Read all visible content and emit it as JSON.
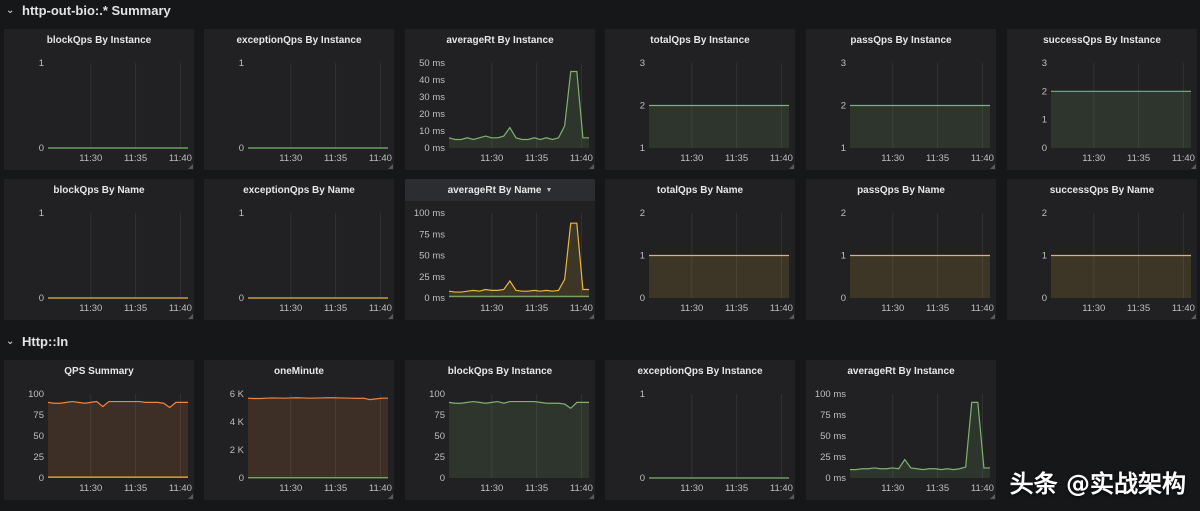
{
  "rows": [
    {
      "title": "http-out-bio:.* Summary"
    },
    {
      "title": "Http::In"
    }
  ],
  "colors": {
    "green": "#7eb26d",
    "yellow": "#eab839",
    "orange": "#ef843c",
    "grid": "#333336",
    "tick": "#bfbfbf"
  },
  "panels": [
    {
      "title": "blockQps By Instance",
      "yticks": [
        "0",
        "1"
      ],
      "ymax": 1,
      "xticks": [
        "11:30",
        "11:35",
        "11:40"
      ],
      "series": [
        {
          "color": "green",
          "fill": false,
          "values": [
            0,
            0
          ]
        }
      ]
    },
    {
      "title": "exceptionQps By Instance",
      "yticks": [
        "0",
        "1"
      ],
      "ymax": 1,
      "xticks": [
        "11:30",
        "11:35",
        "11:40"
      ],
      "series": [
        {
          "color": "green",
          "fill": false,
          "values": [
            0,
            0
          ]
        }
      ]
    },
    {
      "title": "averageRt By Instance",
      "yticks": [
        "0 ms",
        "10 ms",
        "20 ms",
        "30 ms",
        "40 ms",
        "50 ms"
      ],
      "ymax": 50,
      "xticks": [
        "11:30",
        "11:35",
        "11:40"
      ],
      "series": [
        {
          "color": "green",
          "fill": true,
          "values": [
            6,
            5,
            5,
            6,
            5,
            6,
            7,
            6,
            6,
            7,
            12,
            6,
            5,
            5,
            6,
            5,
            6,
            5,
            6,
            13,
            45,
            45,
            6,
            6
          ]
        }
      ]
    },
    {
      "title": "totalQps By Instance",
      "yticks": [
        "1",
        "2",
        "3"
      ],
      "ymin": 1,
      "ymax": 3,
      "xticks": [
        "11:30",
        "11:35",
        "11:40"
      ],
      "series": [
        {
          "color": "green",
          "fill": true,
          "values": [
            2,
            2
          ]
        }
      ]
    },
    {
      "title": "passQps By Instance",
      "yticks": [
        "1",
        "2",
        "3"
      ],
      "ymin": 1,
      "ymax": 3,
      "xticks": [
        "11:30",
        "11:35",
        "11:40"
      ],
      "series": [
        {
          "color": "green",
          "fill": true,
          "values": [
            2,
            2
          ]
        }
      ]
    },
    {
      "title": "successQps By Instance",
      "yticks": [
        "0",
        "1",
        "2",
        "3"
      ],
      "ymax": 3,
      "xticks": [
        "11:30",
        "11:35",
        "11:40"
      ],
      "series": [
        {
          "color": "green",
          "fill": true,
          "values": [
            2,
            2
          ]
        }
      ]
    },
    {
      "title": "blockQps By Name",
      "yticks": [
        "0",
        "1"
      ],
      "ymax": 1,
      "xticks": [
        "11:30",
        "11:35",
        "11:40"
      ],
      "series": [
        {
          "color": "yellow",
          "fill": false,
          "values": [
            0,
            0
          ]
        }
      ]
    },
    {
      "title": "exceptionQps By Name",
      "yticks": [
        "0",
        "1"
      ],
      "ymax": 1,
      "xticks": [
        "11:30",
        "11:35",
        "11:40"
      ],
      "series": [
        {
          "color": "yellow",
          "fill": false,
          "values": [
            0,
            0
          ]
        }
      ]
    },
    {
      "title": "averageRt By Name",
      "active": true,
      "caret": "▼",
      "yticks": [
        "0 ms",
        "25 ms",
        "50 ms",
        "75 ms",
        "100 ms"
      ],
      "ymax": 100,
      "xticks": [
        "11:30",
        "11:35",
        "11:40"
      ],
      "series": [
        {
          "color": "yellow",
          "fill": true,
          "values": [
            8,
            7,
            7,
            8,
            9,
            8,
            10,
            9,
            9,
            10,
            20,
            9,
            8,
            8,
            9,
            8,
            9,
            8,
            9,
            22,
            88,
            88,
            10,
            10
          ]
        },
        {
          "color": "green",
          "fill": false,
          "values": [
            2,
            2,
            2,
            2,
            2,
            2,
            2,
            2,
            2,
            2,
            2,
            2,
            2,
            2,
            2,
            2,
            2,
            2,
            2,
            2,
            2,
            2,
            2,
            2
          ]
        }
      ]
    },
    {
      "title": "totalQps By Name",
      "yticks": [
        "0",
        "1",
        "2"
      ],
      "ymax": 2,
      "xticks": [
        "11:30",
        "11:35",
        "11:40"
      ],
      "series": [
        {
          "color": "yellow",
          "fill": true,
          "values": [
            1,
            1
          ]
        }
      ]
    },
    {
      "title": "passQps By Name",
      "yticks": [
        "0",
        "1",
        "2"
      ],
      "ymax": 2,
      "xticks": [
        "11:30",
        "11:35",
        "11:40"
      ],
      "series": [
        {
          "color": "yellow",
          "fill": true,
          "values": [
            1,
            1
          ]
        }
      ]
    },
    {
      "title": "successQps By Name",
      "yticks": [
        "0",
        "1",
        "2"
      ],
      "ymax": 2,
      "xticks": [
        "11:30",
        "11:35",
        "11:40"
      ],
      "series": [
        {
          "color": "yellow",
          "fill": true,
          "values": [
            1,
            1
          ]
        }
      ]
    },
    {
      "title": "QPS Summary",
      "yticks": [
        "0",
        "25",
        "50",
        "75",
        "100"
      ],
      "ymax": 100,
      "xticks": [
        "11:30",
        "11:35",
        "11:40"
      ],
      "series": [
        {
          "color": "orange",
          "fill": true,
          "values": [
            90,
            89,
            89,
            90,
            91,
            90,
            89,
            90,
            91,
            85,
            91,
            91,
            91,
            91,
            91,
            91,
            90,
            90,
            90,
            89,
            84,
            90,
            90,
            90
          ]
        },
        {
          "color": "yellow",
          "fill": false,
          "values": [
            1,
            1,
            1,
            1,
            1,
            1,
            1,
            1,
            1,
            1,
            1,
            1,
            1,
            1,
            1,
            1,
            1,
            1,
            1,
            1,
            1,
            1,
            1,
            1
          ]
        }
      ]
    },
    {
      "title": "oneMinute",
      "yticks": [
        "0",
        "2 K",
        "4 K",
        "6 K"
      ],
      "ymax": 6000,
      "xticks": [
        "11:30",
        "11:35",
        "11:40"
      ],
      "series": [
        {
          "color": "orange",
          "fill": true,
          "values": [
            5700,
            5680,
            5680,
            5700,
            5720,
            5710,
            5700,
            5720,
            5730,
            5720,
            5700,
            5710,
            5720,
            5730,
            5730,
            5720,
            5710,
            5700,
            5690,
            5700,
            5600,
            5650,
            5700,
            5700
          ]
        },
        {
          "color": "green",
          "fill": false,
          "values": [
            20,
            20,
            20,
            20,
            20,
            20,
            20,
            20,
            20,
            20,
            20,
            20,
            20,
            20,
            20,
            20,
            20,
            20,
            20,
            20,
            20,
            20,
            20,
            20
          ]
        }
      ]
    },
    {
      "title": "blockQps By Instance",
      "yticks": [
        "0",
        "25",
        "50",
        "75",
        "100"
      ],
      "ymax": 100,
      "xticks": [
        "11:30",
        "11:35",
        "11:40"
      ],
      "series": [
        {
          "color": "green",
          "fill": true,
          "values": [
            90,
            89,
            89,
            90,
            91,
            90,
            89,
            90,
            91,
            89,
            91,
            91,
            91,
            91,
            91,
            90,
            89,
            89,
            89,
            88,
            83,
            90,
            90,
            90
          ]
        }
      ]
    },
    {
      "title": "exceptionQps By Instance",
      "yticks": [
        "0",
        "1"
      ],
      "ymax": 1,
      "xticks": [
        "11:30",
        "11:35",
        "11:40"
      ],
      "series": [
        {
          "color": "green",
          "fill": false,
          "values": [
            0,
            0
          ]
        }
      ]
    },
    {
      "title": "averageRt By Instance",
      "yticks": [
        "0 ms",
        "25 ms",
        "50 ms",
        "75 ms",
        "100 ms"
      ],
      "ymax": 100,
      "xticks": [
        "11:30",
        "11:35",
        "11:40"
      ],
      "series": [
        {
          "color": "green",
          "fill": true,
          "values": [
            10,
            10,
            11,
            11,
            12,
            11,
            11,
            12,
            11,
            22,
            12,
            11,
            10,
            11,
            11,
            10,
            11,
            10,
            11,
            13,
            90,
            90,
            12,
            12
          ]
        }
      ]
    }
  ],
  "watermark": {
    "text": "头条 @实战架构"
  }
}
